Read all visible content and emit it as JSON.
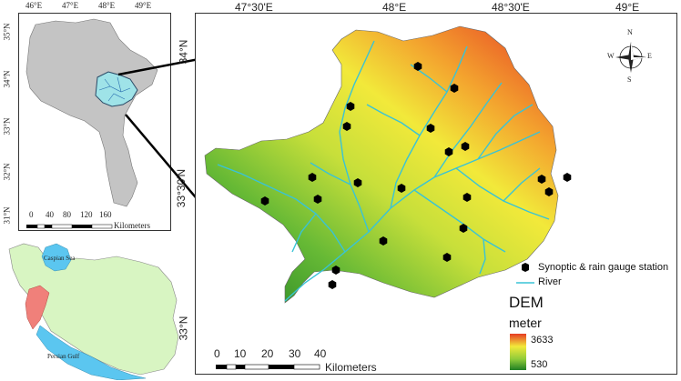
{
  "inset_top": {
    "lon_ticks": [
      "46°E",
      "47°E",
      "48°E",
      "49°E"
    ],
    "lat_ticks": [
      "35°N",
      "34°N",
      "33°N",
      "32°N",
      "31°N"
    ],
    "scale_numbers": [
      "0",
      "40",
      "80",
      "120",
      "160"
    ],
    "scale_unit": "Kilometers"
  },
  "inset_bottom": {
    "caspian_label": "Caspian Sea",
    "gulf_label": "Persian Gulf"
  },
  "main_map": {
    "lon_ticks": [
      "47°30'E",
      "48°E",
      "48°30'E",
      "49°E"
    ],
    "lat_ticks": [
      "34°N",
      "33°30'N",
      "33°N"
    ],
    "scale_numbers": [
      "0",
      "10",
      "20",
      "30",
      "40"
    ],
    "scale_unit": "Kilometers",
    "compass": {
      "n": "N",
      "s": "S",
      "e": "E",
      "w": "W"
    }
  },
  "legend": {
    "station_label": "Synoptic & rain gauge station",
    "river_label": "River",
    "dem_title": "DEM",
    "dem_unit": "meter",
    "dem_max": "3633",
    "dem_min": "530"
  },
  "colors": {
    "river": "#39c3d6",
    "dem_high": "#e8412a",
    "dem_mid": "#e6e632",
    "dem_low": "#2e8f2a",
    "province_fill": "#c4c4c4",
    "iran_fill": "#d8f5c2",
    "water": "#5bc6f0",
    "province_highlight": "#f0807a"
  }
}
